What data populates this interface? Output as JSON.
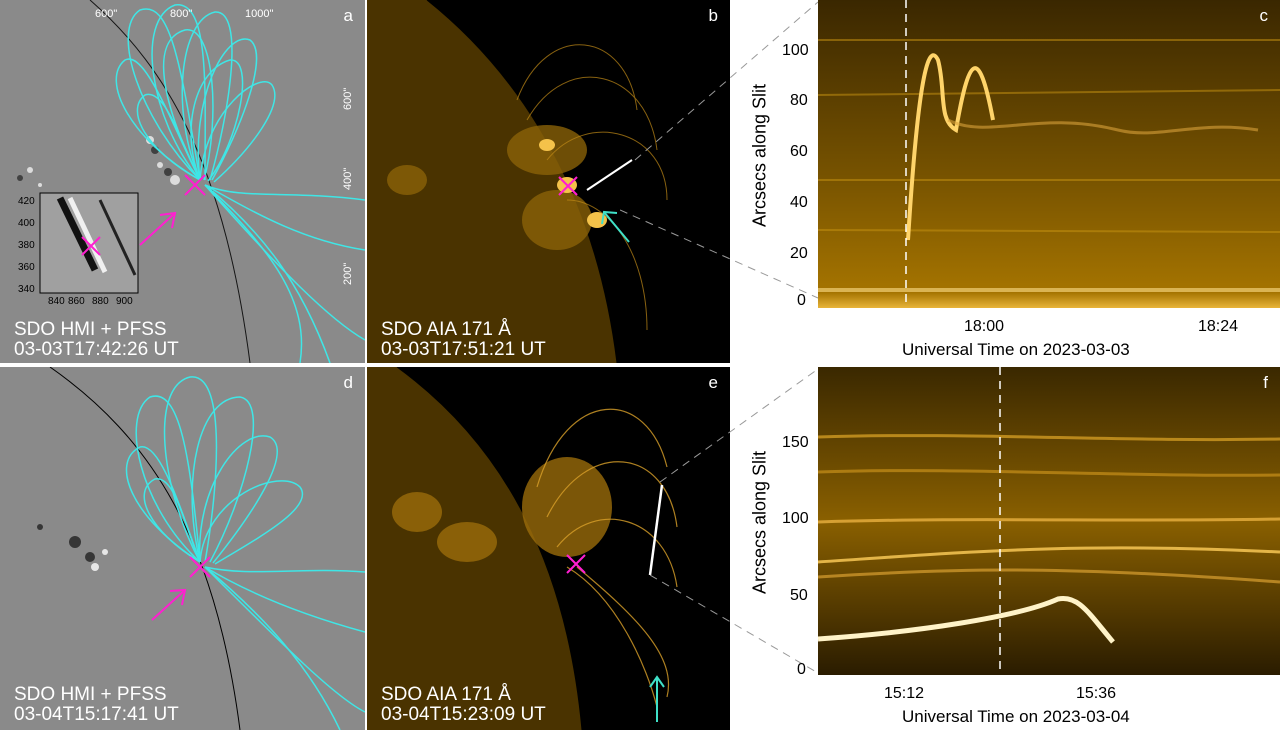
{
  "panels": {
    "a": {
      "label": "a",
      "caption_line1": "SDO HMI + PFSS",
      "caption_line2": "03-03T17:42:26 UT",
      "x_ticks": [
        "600\"",
        "800\"",
        "1000\""
      ],
      "y_ticks": [
        "600\"",
        "400\"",
        "200\""
      ],
      "inset": {
        "y_ticks": [
          "420",
          "400",
          "380",
          "360",
          "340"
        ],
        "x_ticks": [
          "840",
          "860",
          "880",
          "900"
        ]
      }
    },
    "b": {
      "label": "b",
      "caption_line1": "SDO AIA 171 Å",
      "caption_line2": "03-03T17:51:21 UT"
    },
    "c": {
      "label": "c",
      "ylabel": "Arcsecs along Slit",
      "xlabel": "Universal Time on 2023-03-03",
      "y_ticks": [
        "100",
        "80",
        "60",
        "40",
        "20",
        "0"
      ],
      "x_ticks": [
        "18:00",
        "18:24"
      ]
    },
    "d": {
      "label": "d",
      "caption_line1": "SDO HMI + PFSS",
      "caption_line2": "03-04T15:17:41 UT"
    },
    "e": {
      "label": "e",
      "caption_line1": "SDO AIA 171 Å",
      "caption_line2": "03-04T15:23:09 UT"
    },
    "f": {
      "label": "f",
      "ylabel": "Arcsecs along Slit",
      "xlabel": "Universal Time on 2023-03-04",
      "y_ticks": [
        "150",
        "100",
        "50",
        "0"
      ],
      "x_ticks": [
        "15:12",
        "15:36"
      ]
    }
  },
  "colors": {
    "loops": "#3fe6e6",
    "marker": "#ff1fd0",
    "arrow_cyan": "#3fe0c8",
    "gold": "#e8a400"
  }
}
